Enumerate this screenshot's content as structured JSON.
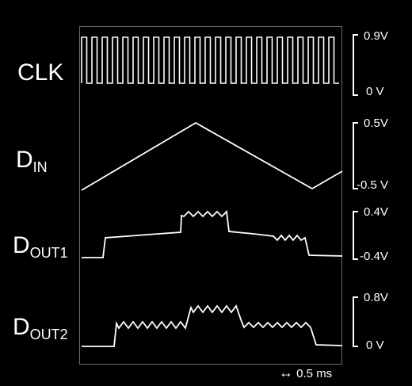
{
  "signals": [
    {
      "name": "CLK",
      "subscript": "",
      "scale_top": "0.9V",
      "scale_bottom": "0 V"
    },
    {
      "name": "D",
      "subscript": "IN",
      "scale_top": "0.5V",
      "scale_bottom": "-0.5 V"
    },
    {
      "name": "D",
      "subscript": "OUT1",
      "scale_top": "0.4V",
      "scale_bottom": "-0.4V"
    },
    {
      "name": "D",
      "subscript": "OUT2",
      "scale_top": "0.8V",
      "scale_bottom": "0 V"
    }
  ],
  "time_scale": {
    "arrow": "↔",
    "label": "0.5 ms"
  },
  "colors": {
    "background": "#000000",
    "trace": "#ffffff",
    "frame": "#6a6a6a"
  }
}
